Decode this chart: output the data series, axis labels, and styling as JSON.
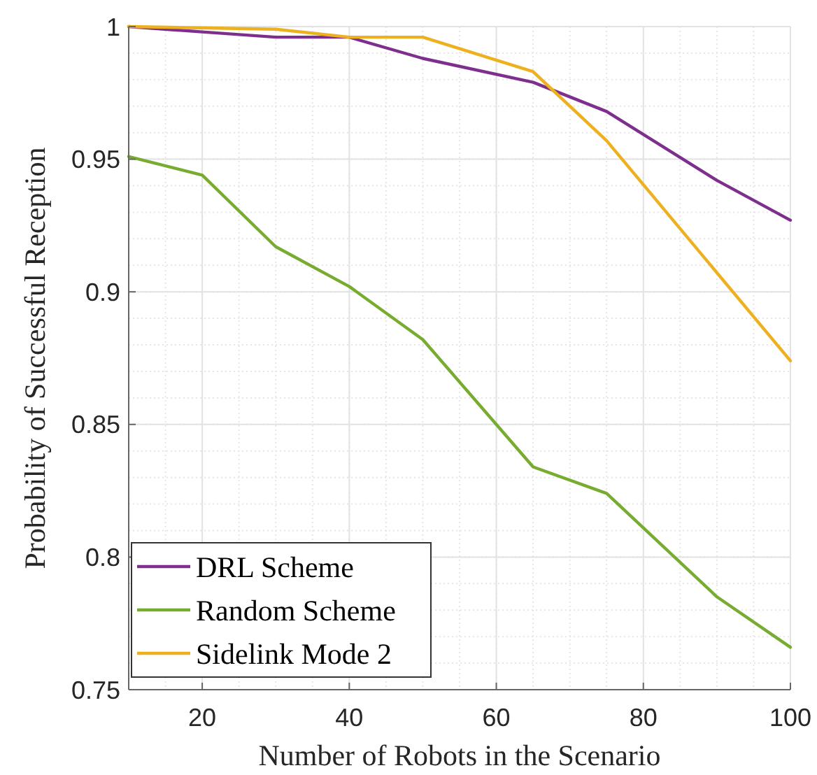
{
  "chart_data": {
    "type": "line",
    "xlabel": "Number of Robots in the Scenario",
    "ylabel": "Probability of Successful Reception",
    "xlim": [
      10,
      100
    ],
    "xticks": [
      20,
      40,
      60,
      80,
      100
    ],
    "ylim": [
      0.75,
      1
    ],
    "yticks": [
      0.75,
      0.8,
      0.85,
      0.9,
      0.95,
      1
    ],
    "grid": true,
    "legend": "bottom left",
    "marker": "none",
    "line_style": "solid",
    "series": [
      {
        "name": "DRL Scheme",
        "color": "#7e2f8e",
        "x": [
          10,
          20,
          30,
          40,
          50,
          65,
          75,
          90,
          100
        ],
        "values": [
          1.0,
          0.998,
          0.996,
          0.996,
          0.988,
          0.979,
          0.968,
          0.942,
          0.927
        ]
      },
      {
        "name": "Random Scheme",
        "color": "#77ac30",
        "x": [
          10,
          20,
          30,
          40,
          50,
          65,
          75,
          90,
          100
        ],
        "values": [
          0.951,
          0.944,
          0.917,
          0.902,
          0.882,
          0.834,
          0.824,
          0.785,
          0.766
        ]
      },
      {
        "name": "Sidelink Mode 2",
        "color": "#edb120",
        "x": [
          10,
          30,
          40,
          50,
          65,
          75,
          100
        ],
        "values": [
          1.0,
          0.999,
          0.996,
          0.996,
          0.983,
          0.957,
          0.874
        ]
      }
    ]
  }
}
